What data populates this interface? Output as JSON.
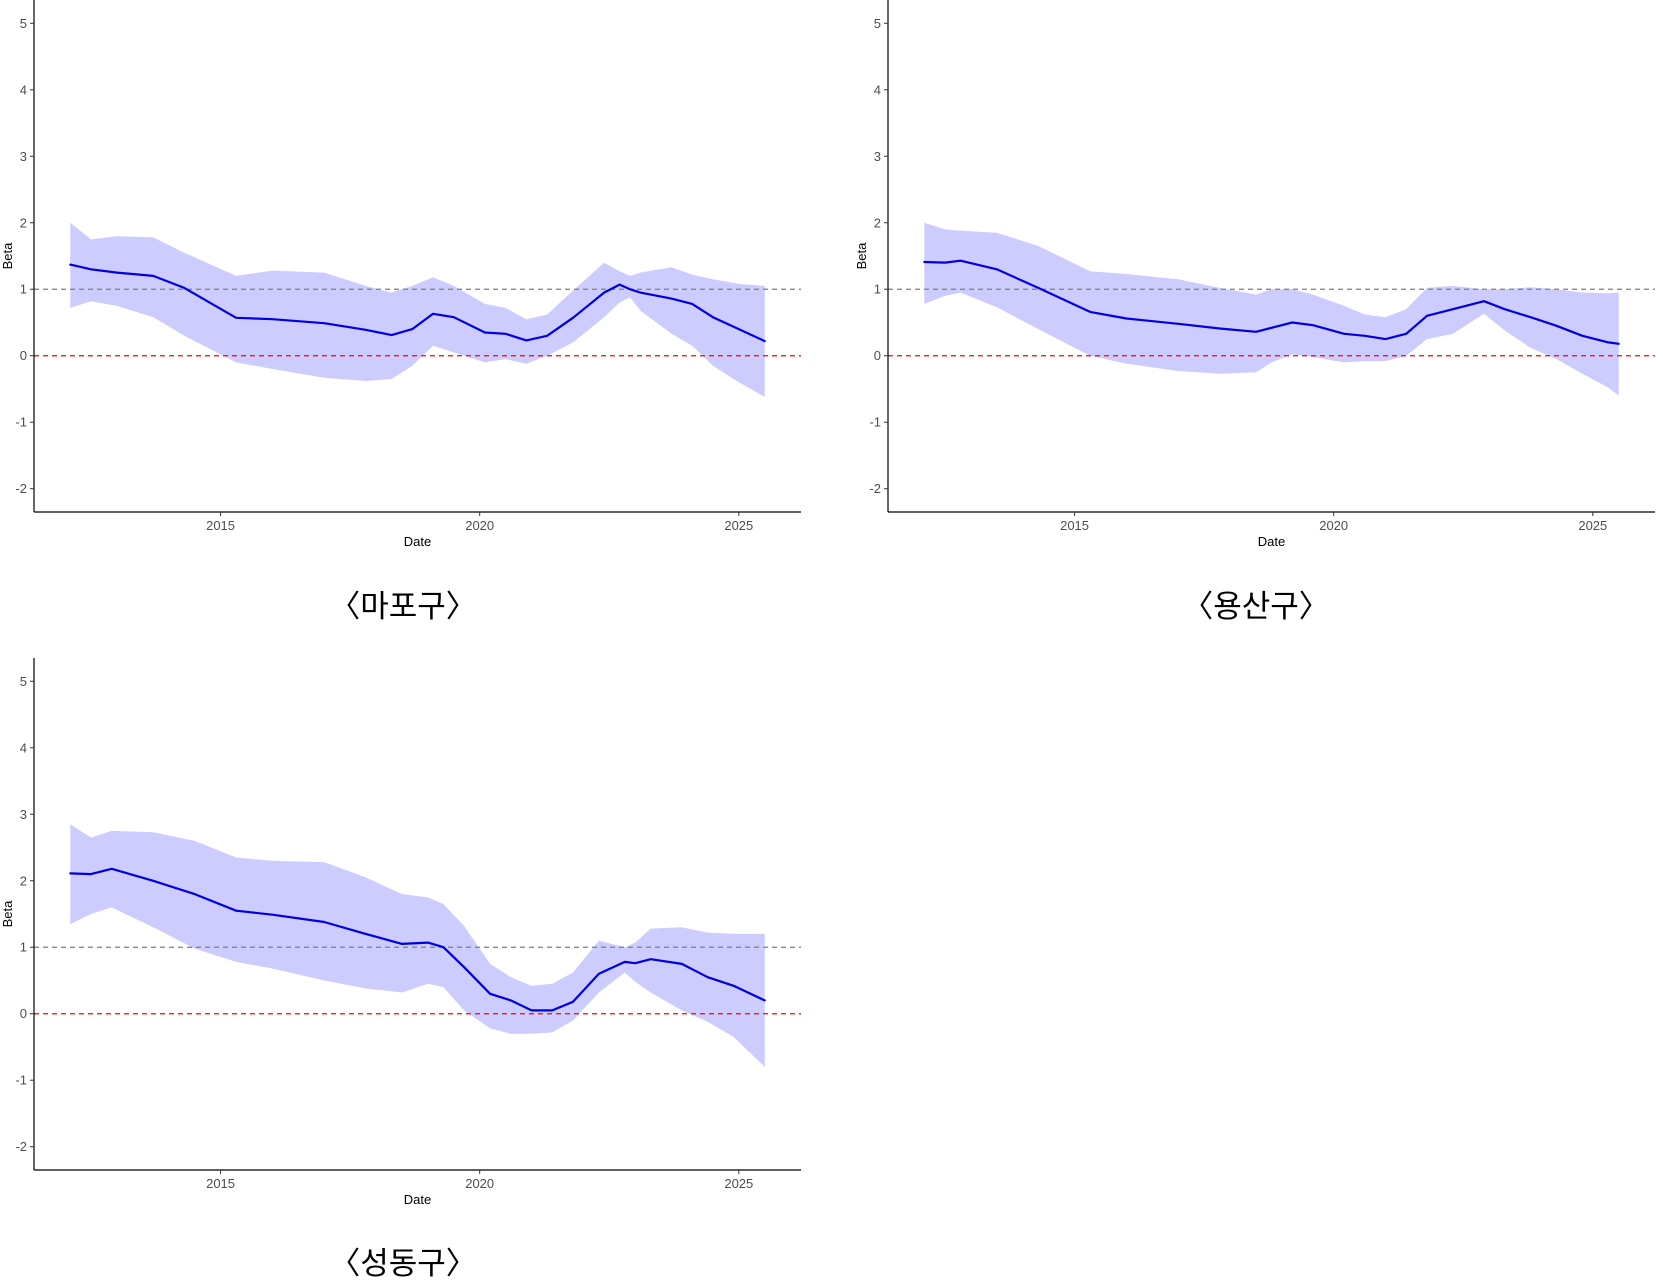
{
  "colors": {
    "line": "#0000e0",
    "band": "#ccccff",
    "ref_one": "#7f7f7f",
    "ref_zero": "#ff0000",
    "axis": "#000000"
  },
  "chart_data": [
    {
      "type": "line",
      "caption": "〈마포구〉",
      "xlabel": "Date",
      "ylabel": "Beta",
      "xlim": [
        2011.4,
        2026.2
      ],
      "ylim": [
        -2.35,
        5.35
      ],
      "xticks": [
        2015,
        2020,
        2025
      ],
      "yticks": [
        -2,
        -1,
        0,
        1,
        2,
        3,
        4,
        5
      ],
      "reference_lines": [
        {
          "y": 1,
          "style": "dashed",
          "color": "grey"
        },
        {
          "y": 0,
          "style": "dashed",
          "color": "red"
        }
      ],
      "x": [
        2012.1,
        2012.5,
        2013.0,
        2013.7,
        2014.3,
        2015.3,
        2016.0,
        2017.0,
        2017.8,
        2018.3,
        2018.7,
        2019.1,
        2019.5,
        2020.1,
        2020.5,
        2020.9,
        2021.3,
        2021.8,
        2022.4,
        2022.7,
        2022.9,
        2023.1,
        2023.7,
        2024.1,
        2024.5,
        2025.0,
        2025.5
      ],
      "beta": [
        1.37,
        1.3,
        1.25,
        1.2,
        1.02,
        0.57,
        0.55,
        0.49,
        0.39,
        0.31,
        0.4,
        0.63,
        0.58,
        0.35,
        0.33,
        0.23,
        0.3,
        0.57,
        0.95,
        1.07,
        1.0,
        0.95,
        0.86,
        0.78,
        0.58,
        0.4,
        0.22
      ],
      "upper": [
        2.0,
        1.75,
        1.8,
        1.78,
        1.55,
        1.2,
        1.28,
        1.25,
        1.05,
        0.95,
        1.05,
        1.18,
        1.05,
        0.78,
        0.72,
        0.55,
        0.62,
        0.98,
        1.4,
        1.27,
        1.2,
        1.25,
        1.33,
        1.22,
        1.15,
        1.08,
        1.05
      ],
      "lower": [
        0.72,
        0.82,
        0.75,
        0.58,
        0.3,
        -0.1,
        -0.2,
        -0.33,
        -0.38,
        -0.35,
        -0.15,
        0.15,
        0.05,
        -0.1,
        -0.05,
        -0.12,
        0.0,
        0.2,
        0.58,
        0.8,
        0.88,
        0.68,
        0.33,
        0.15,
        -0.15,
        -0.4,
        -0.62
      ]
    },
    {
      "type": "line",
      "caption": "〈용산구〉",
      "xlabel": "Date",
      "ylabel": "Beta",
      "xlim": [
        2011.4,
        2026.2
      ],
      "ylim": [
        -2.35,
        5.35
      ],
      "xticks": [
        2015,
        2020,
        2025
      ],
      "yticks": [
        -2,
        -1,
        0,
        1,
        2,
        3,
        4,
        5
      ],
      "reference_lines": [
        {
          "y": 1,
          "style": "dashed",
          "color": "grey"
        },
        {
          "y": 0,
          "style": "dashed",
          "color": "red"
        }
      ],
      "x": [
        2012.1,
        2012.5,
        2012.8,
        2013.5,
        2014.3,
        2015.3,
        2016.0,
        2017.0,
        2017.8,
        2018.5,
        2018.8,
        2019.2,
        2019.6,
        2020.2,
        2020.6,
        2021.0,
        2021.4,
        2021.8,
        2022.3,
        2022.9,
        2023.3,
        2023.8,
        2024.3,
        2024.8,
        2025.3,
        2025.5
      ],
      "beta": [
        1.41,
        1.4,
        1.43,
        1.3,
        1.02,
        0.66,
        0.56,
        0.48,
        0.41,
        0.36,
        0.42,
        0.5,
        0.46,
        0.33,
        0.3,
        0.25,
        0.33,
        0.6,
        0.7,
        0.82,
        0.7,
        0.58,
        0.45,
        0.3,
        0.2,
        0.18
      ],
      "upper": [
        2.0,
        1.9,
        1.88,
        1.85,
        1.65,
        1.27,
        1.23,
        1.15,
        1.02,
        0.92,
        1.0,
        1.0,
        0.92,
        0.75,
        0.62,
        0.58,
        0.7,
        1.02,
        1.05,
        1.0,
        1.0,
        1.03,
        1.0,
        0.95,
        0.94,
        0.95
      ],
      "lower": [
        0.78,
        0.9,
        0.95,
        0.73,
        0.4,
        0.0,
        -0.12,
        -0.23,
        -0.27,
        -0.25,
        -0.1,
        0.02,
        -0.02,
        -0.1,
        -0.08,
        -0.08,
        0.0,
        0.25,
        0.33,
        0.63,
        0.38,
        0.12,
        -0.05,
        -0.27,
        -0.48,
        -0.6
      ]
    },
    {
      "type": "line",
      "caption": "〈성동구〉",
      "xlabel": "Date",
      "ylabel": "Beta",
      "xlim": [
        2011.4,
        2026.2
      ],
      "ylim": [
        -2.35,
        5.35
      ],
      "xticks": [
        2015,
        2020,
        2025
      ],
      "yticks": [
        -2,
        -1,
        0,
        1,
        2,
        3,
        4,
        5
      ],
      "reference_lines": [
        {
          "y": 1,
          "style": "dashed",
          "color": "grey"
        },
        {
          "y": 0,
          "style": "dashed",
          "color": "red"
        }
      ],
      "x": [
        2012.1,
        2012.5,
        2012.9,
        2013.7,
        2014.5,
        2015.3,
        2016.0,
        2017.0,
        2017.8,
        2018.5,
        2019.0,
        2019.3,
        2019.7,
        2020.2,
        2020.6,
        2021.0,
        2021.4,
        2021.8,
        2022.3,
        2022.8,
        2023.0,
        2023.3,
        2023.9,
        2024.4,
        2024.9,
        2025.5
      ],
      "beta": [
        2.11,
        2.1,
        2.18,
        2.0,
        1.8,
        1.55,
        1.49,
        1.38,
        1.2,
        1.05,
        1.07,
        1.0,
        0.7,
        0.3,
        0.2,
        0.05,
        0.05,
        0.18,
        0.6,
        0.78,
        0.76,
        0.82,
        0.75,
        0.55,
        0.42,
        0.2
      ],
      "upper": [
        2.85,
        2.65,
        2.75,
        2.73,
        2.6,
        2.35,
        2.3,
        2.28,
        2.05,
        1.8,
        1.75,
        1.65,
        1.32,
        0.75,
        0.55,
        0.42,
        0.45,
        0.62,
        1.1,
        1.0,
        1.07,
        1.28,
        1.3,
        1.22,
        1.2,
        1.2
      ],
      "lower": [
        1.35,
        1.5,
        1.6,
        1.3,
        0.98,
        0.78,
        0.68,
        0.5,
        0.38,
        0.32,
        0.45,
        0.4,
        0.05,
        -0.22,
        -0.3,
        -0.3,
        -0.28,
        -0.1,
        0.32,
        0.62,
        0.48,
        0.32,
        0.05,
        -0.12,
        -0.35,
        -0.8
      ]
    }
  ]
}
